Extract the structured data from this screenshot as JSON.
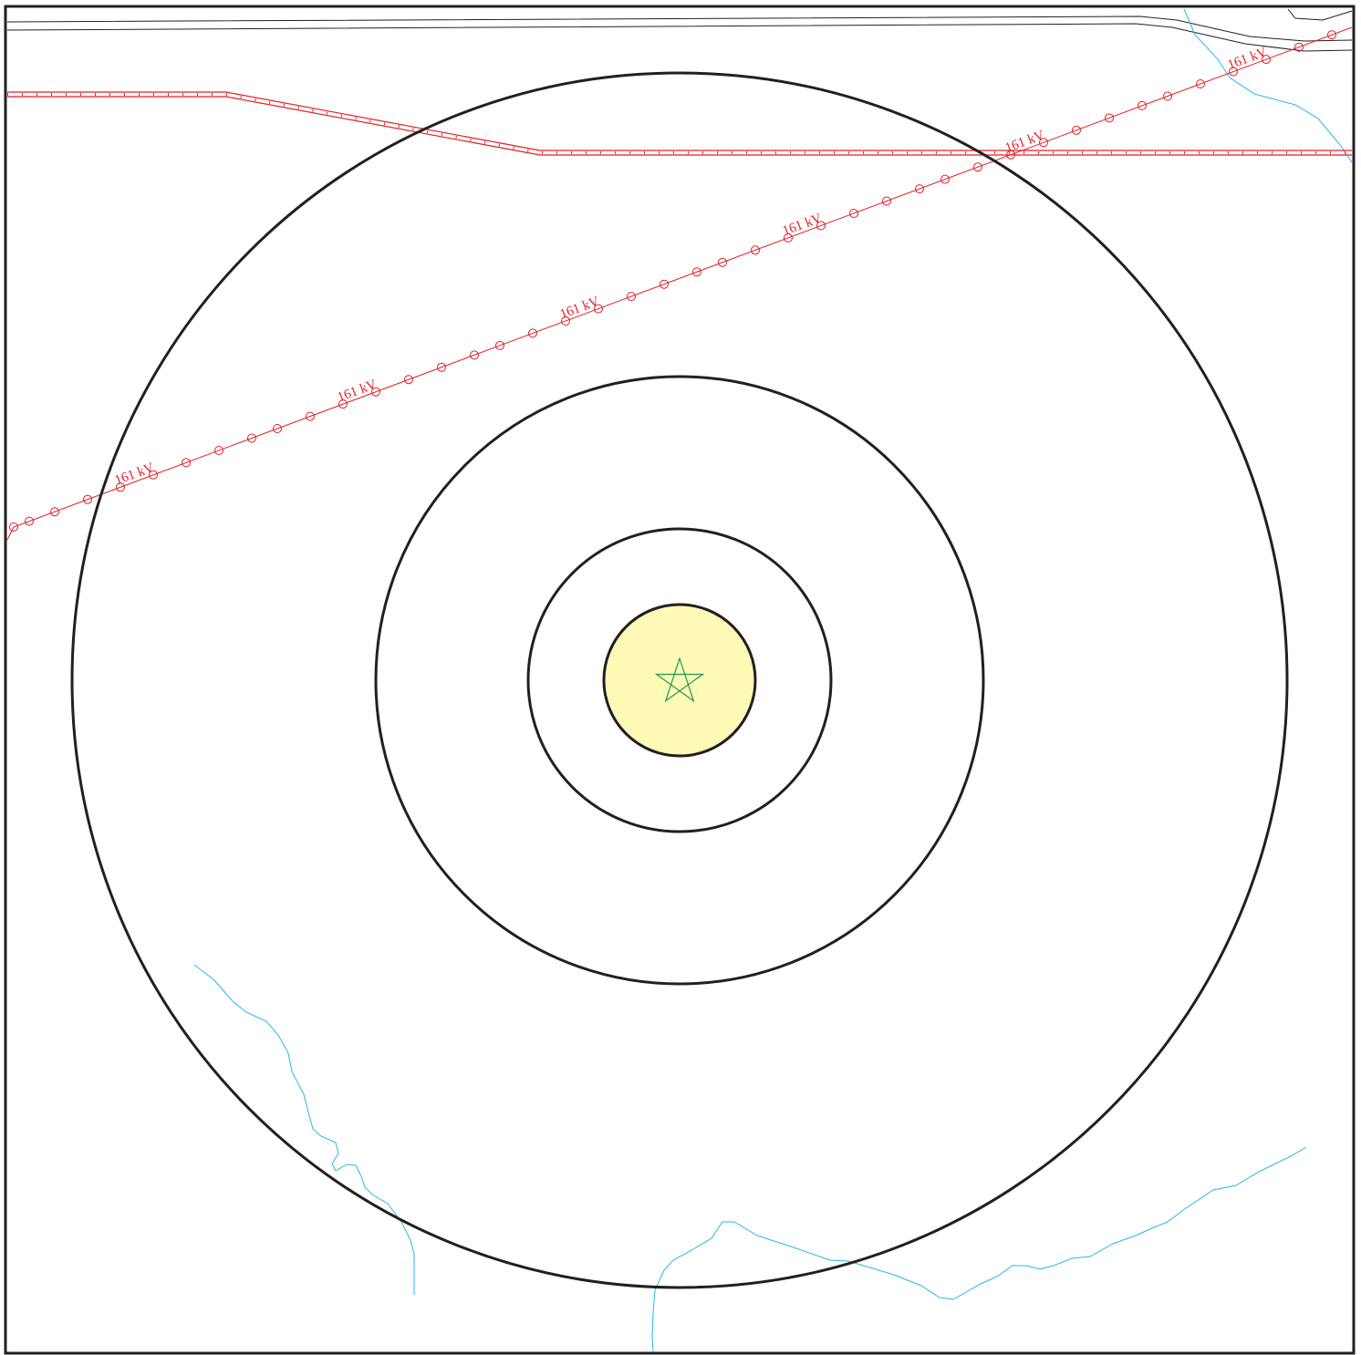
{
  "map": {
    "power_line_label": "161 kV",
    "colors": {
      "frame": "#231f20",
      "ring": "#231f20",
      "inner_fill": "#fdfab7",
      "power_line": "#e31e24",
      "water": "#29b6e8",
      "road": "#231f20",
      "site_marker": "#1a9a4a"
    },
    "icons": {
      "site_marker": "star-icon",
      "tower": "tower-circle-icon"
    }
  }
}
